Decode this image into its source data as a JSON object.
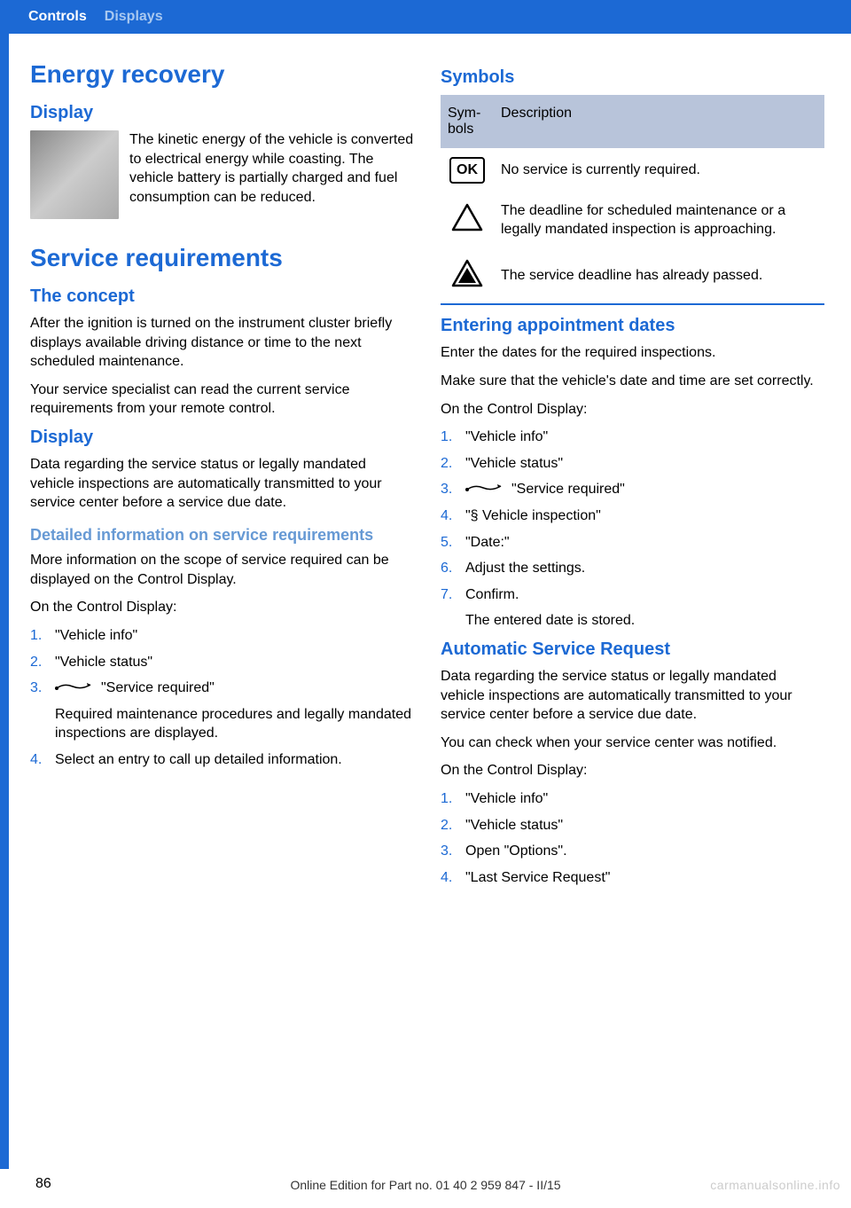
{
  "header": {
    "breadcrumb1": "Controls",
    "breadcrumb2": "Displays"
  },
  "left": {
    "energy": {
      "title": "Energy recovery",
      "display_h": "Display",
      "display_text": "The kinetic energy of the vehicle is converted to electrical energy while coasting. The vehicle bat­tery is partially charged and fuel consumption can be reduced."
    },
    "service": {
      "title": "Service requirements",
      "concept_h": "The concept",
      "concept_p1": "After the ignition is turned on the instrument cluster briefly displays available driving dis­tance or time to the next scheduled mainte­nance.",
      "concept_p2": "Your service specialist can read the current service requirements from your remote con­trol.",
      "display_h": "Display",
      "display_p": "Data regarding the service status or legally mandated vehicle inspections are automati­cally transmitted to your service center before a service due date.",
      "detail_h": "Detailed information on service requirements",
      "detail_p1": "More information on the scope of service re­quired can be displayed on the Control Dis­play.",
      "detail_p2": "On the Control Display:",
      "list": [
        {
          "n": "1.",
          "t": "\"Vehicle info\""
        },
        {
          "n": "2.",
          "t": "\"Vehicle status\""
        },
        {
          "n": "3.",
          "t": "\"Service required\"",
          "icon": true,
          "sub": "Required maintenance procedures and le­gally mandated inspections are displayed."
        },
        {
          "n": "4.",
          "t": "Select an entry to call up detailed informa­tion."
        }
      ]
    }
  },
  "right": {
    "symbols_h": "Symbols",
    "table": {
      "h1": "Sym­bols",
      "h2": "Description",
      "rows": [
        {
          "sym": "ok",
          "desc": "No service is currently required."
        },
        {
          "sym": "tri_outline",
          "desc": "The deadline for scheduled mainte­nance or a legally mandated inspec­tion is approaching."
        },
        {
          "sym": "tri_filled",
          "desc": "The service deadline has already passed."
        }
      ]
    },
    "appt": {
      "h": "Entering appointment dates",
      "p1": "Enter the dates for the required inspections.",
      "p2": "Make sure that the vehicle's date and time are set correctly.",
      "p3": "On the Control Display:",
      "list": [
        {
          "n": "1.",
          "t": "\"Vehicle info\""
        },
        {
          "n": "2.",
          "t": "\"Vehicle status\""
        },
        {
          "n": "3.",
          "t": "\"Service required\"",
          "icon": true
        },
        {
          "n": "4.",
          "t": "\"§ Vehicle inspection\""
        },
        {
          "n": "5.",
          "t": "\"Date:\""
        },
        {
          "n": "6.",
          "t": "Adjust the settings."
        },
        {
          "n": "7.",
          "t": "Confirm.",
          "sub": "The entered date is stored."
        }
      ]
    },
    "auto": {
      "h": "Automatic Service Request",
      "p1": "Data regarding the service status or legally mandated vehicle inspections are automati­cally transmitted to your service center before a service due date.",
      "p2": "You can check when your service center was notified.",
      "p3": "On the Control Display:",
      "list": [
        {
          "n": "1.",
          "t": "\"Vehicle info\""
        },
        {
          "n": "2.",
          "t": "\"Vehicle status\""
        },
        {
          "n": "3.",
          "t": "Open \"Options\"."
        },
        {
          "n": "4.",
          "t": "\"Last Service Request\""
        }
      ]
    }
  },
  "footer": {
    "page": "86",
    "text": "Online Edition for Part no. 01 40 2 959 847 - II/15",
    "watermark": "carmanualsonline.info"
  }
}
